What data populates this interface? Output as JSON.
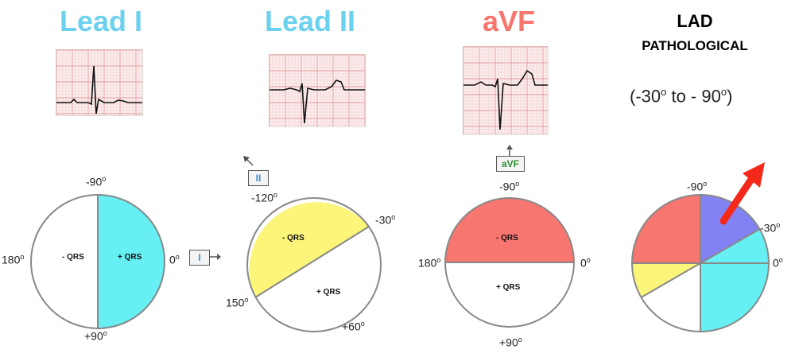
{
  "panels": [
    {
      "title": "Lead I",
      "title_color": "#6cd1ee",
      "labels": {
        "top": "-90",
        "bottom": "+90",
        "left": "180",
        "right": "0"
      },
      "neg_qrs": "- QRS",
      "pos_qrs": "+ QRS",
      "tag": "I",
      "tag_color": "#3a8fd6",
      "fill_color": "#66f0f4"
    },
    {
      "title": "Lead II",
      "title_color": "#6cd1ee",
      "labels": {
        "top_left": "-120",
        "top_right": "-30",
        "bottom_left": "150",
        "bottom_right": "+60"
      },
      "neg_qrs": "- QRS",
      "pos_qrs": "+ QRS",
      "tag": "II",
      "tag_color": "#3a8fd6",
      "fill_color": "#fbf57a"
    },
    {
      "title": "aVF",
      "title_color": "#f7756c",
      "labels": {
        "top": "-90",
        "bottom": "+90",
        "left": "180",
        "right": "0"
      },
      "neg_qrs": "- QRS",
      "pos_qrs": "+ QRS",
      "tag": "aVF",
      "tag_color": "#2f8a2f",
      "fill_color": "#f7766f"
    },
    {
      "title": "LAD",
      "subtitle": "PATHOLOGICAL",
      "range": "(-30",
      "range_mid": " to - 90",
      "range_end": ")",
      "title_color": "#000000",
      "labels": {
        "top": "-90",
        "right_upper": "-30",
        "right": "0"
      },
      "arrow_color": "#f5291a",
      "sector_colors": [
        "#f7766f",
        "#8282f5",
        "#66f0f4",
        "#66f0f4",
        "#ffffff",
        "#fbf57a"
      ]
    }
  ],
  "degree_symbol": "o"
}
